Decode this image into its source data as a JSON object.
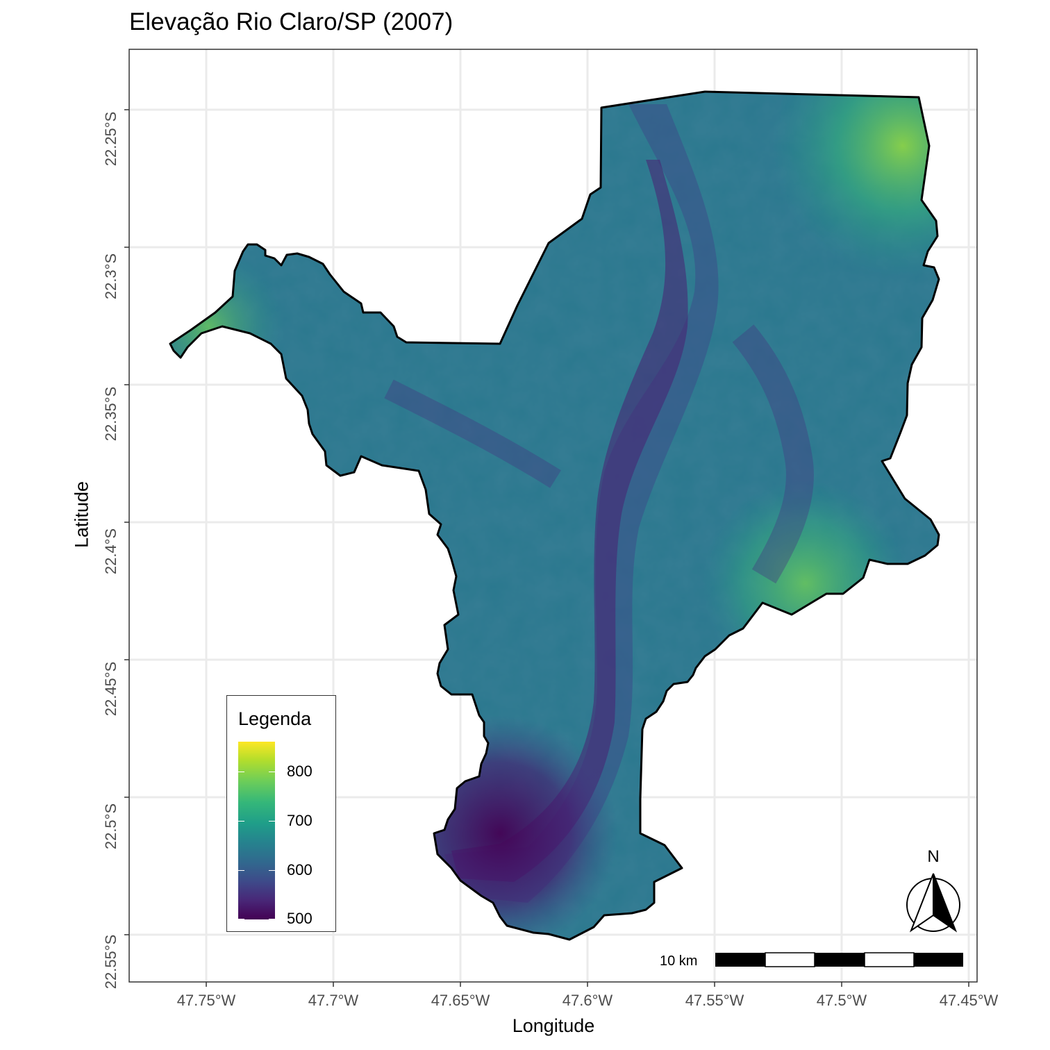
{
  "title": "Elevação Rio Claro/SP (2007)",
  "axes": {
    "xlabel": "Longitude",
    "ylabel": "Latitude",
    "x_ticks": [
      "47.75°W",
      "47.7°W",
      "47.65°W",
      "47.6°W",
      "47.55°W",
      "47.5°W",
      "47.45°W"
    ],
    "y_ticks": [
      "22.25°S",
      "22.3°S",
      "22.35°S",
      "22.4°S",
      "22.45°S",
      "22.5°S",
      "22.55°S"
    ]
  },
  "legend": {
    "title": "Legenda",
    "ticks": [
      "800",
      "700",
      "600",
      "500"
    ],
    "colors": [
      "#440154",
      "#3e4989",
      "#26828e",
      "#35b779",
      "#b5de2b",
      "#fde725"
    ]
  },
  "scale_bar": {
    "label": "10 km"
  },
  "north_arrow": {
    "label": "N"
  },
  "map_data": {
    "type": "raster-elevation",
    "region": "Rio Claro/SP",
    "year": 2007,
    "xlim": [
      -47.78,
      -47.445
    ],
    "ylim": [
      -22.566,
      -22.229
    ],
    "value_range": [
      490,
      860
    ],
    "colormap": "viridis"
  }
}
